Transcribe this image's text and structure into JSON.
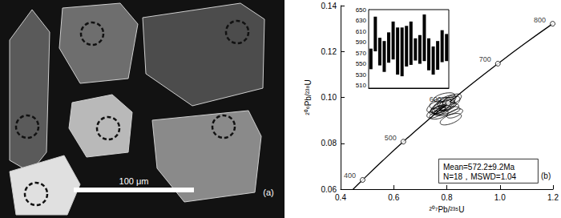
{
  "panel_a": {
    "scale_bar": "100 μm",
    "label": "(a)"
  },
  "chart_data": [
    {
      "type": "concordia",
      "xlabel": "²⁰⁷Pb/²³⁵U",
      "ylabel": "²⁰⁶Pb/²³⁸U",
      "xlim": [
        0.4,
        1.2
      ],
      "xticks": [
        0.4,
        0.6,
        0.8,
        {
          "value": 1.0,
          "label": "1.0"
        },
        1.2
      ],
      "ylim": [
        0.06,
        0.14
      ],
      "yticks": [
        0.06,
        0.08,
        {
          "value": 0.1,
          "label": "0.10"
        },
        0.12,
        0.14
      ],
      "grid": false,
      "concordia": {
        "x": [
          0.4397,
          0.4828,
          0.5576,
          0.6363,
          0.7189,
          0.8056,
          0.8968,
          0.9925,
          1.0931,
          1.1987
        ],
        "y": [
          0.05908,
          0.06402,
          0.0723,
          0.0807,
          0.0891,
          0.0975,
          0.1061,
          0.1147,
          0.1234,
          0.1321
        ]
      },
      "age_marks": {
        "ages": [
          400,
          500,
          600,
          700,
          800
        ],
        "x": [
          0.4828,
          0.6363,
          0.8056,
          0.9925,
          1.1987
        ],
        "y": [
          0.06402,
          0.0807,
          0.0975,
          0.1147,
          0.1321
        ]
      },
      "ellipses": [
        {
          "x": 0.775,
          "y": 0.0955,
          "x_err": 0.035,
          "y_err": 0.0025,
          "rho": 0.6
        },
        {
          "x": 0.79,
          "y": 0.097,
          "x_err": 0.04,
          "y_err": 0.003,
          "rho": 0.6
        },
        {
          "x": 0.8,
          "y": 0.0985,
          "x_err": 0.035,
          "y_err": 0.0025,
          "rho": 0.6
        },
        {
          "x": 0.765,
          "y": 0.0945,
          "x_err": 0.03,
          "y_err": 0.002,
          "rho": 0.6
        },
        {
          "x": 0.785,
          "y": 0.096,
          "x_err": 0.045,
          "y_err": 0.003,
          "rho": 0.6
        },
        {
          "x": 0.81,
          "y": 0.0975,
          "x_err": 0.04,
          "y_err": 0.003,
          "rho": 0.6
        },
        {
          "x": 0.76,
          "y": 0.0935,
          "x_err": 0.035,
          "y_err": 0.0025,
          "rho": 0.6
        },
        {
          "x": 0.795,
          "y": 0.095,
          "x_err": 0.05,
          "y_err": 0.0025,
          "rho": 0.5
        },
        {
          "x": 0.82,
          "y": 0.099,
          "x_err": 0.035,
          "y_err": 0.0025,
          "rho": 0.6
        },
        {
          "x": 0.775,
          "y": 0.0975,
          "x_err": 0.04,
          "y_err": 0.0025,
          "rho": 0.5
        },
        {
          "x": 0.8,
          "y": 0.094,
          "x_err": 0.05,
          "y_err": 0.002,
          "rho": 0.5
        },
        {
          "x": 0.83,
          "y": 0.093,
          "x_err": 0.03,
          "y_err": 0.002,
          "rho": 0.6
        },
        {
          "x": 0.815,
          "y": 0.0905,
          "x_err": 0.04,
          "y_err": 0.0025,
          "rho": 0.6
        },
        {
          "x": 0.77,
          "y": 0.0925,
          "x_err": 0.035,
          "y_err": 0.002,
          "rho": 0.5
        },
        {
          "x": 0.79,
          "y": 0.1,
          "x_err": 0.04,
          "y_err": 0.002,
          "rho": 0.5
        },
        {
          "x": 0.755,
          "y": 0.096,
          "x_err": 0.03,
          "y_err": 0.0025,
          "rho": 0.6
        },
        {
          "x": 0.805,
          "y": 0.096,
          "x_err": 0.03,
          "y_err": 0.002,
          "rho": 0.6
        },
        {
          "x": 0.785,
          "y": 0.0945,
          "x_err": 0.03,
          "y_err": 0.002,
          "rho": 0.6
        }
      ],
      "annotations": [
        "Mean=572.2±9.2Ma",
        "N=18，MSWD=1.04"
      ],
      "panel_label": "(b)",
      "color": "#000000"
    },
    {
      "type": "range_bar",
      "categories": [
        null,
        null,
        null,
        null,
        null,
        null,
        null,
        null,
        null,
        null,
        null,
        null,
        null,
        null,
        null,
        null,
        null,
        null
      ],
      "low": [
        540,
        573,
        547,
        535,
        552,
        558,
        530,
        527,
        545,
        548,
        556,
        550,
        555,
        538,
        530,
        539,
        553,
        555
      ],
      "high": [
        578,
        637,
        598,
        592,
        608,
        628,
        617,
        617,
        620,
        628,
        597,
        603,
        641,
        597,
        582,
        592,
        612,
        605
      ],
      "ylim": [
        505,
        650
      ],
      "yticks": [
        510,
        530,
        550,
        570,
        590,
        610,
        630,
        650
      ],
      "grid": true,
      "tick_labels": "y",
      "color": "#000000"
    }
  ]
}
